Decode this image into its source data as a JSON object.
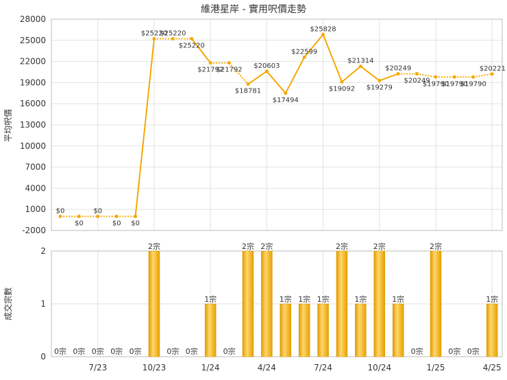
{
  "chart_data": [
    {
      "type": "line",
      "title": "維港星岸 - 實用呎價走勢",
      "ylabel": "平均呎價",
      "ylim": [
        -2000,
        28000
      ],
      "y_ticks": [
        "-2000",
        "1000",
        "4000",
        "7000",
        "10000",
        "13000",
        "16000",
        "19000",
        "22000",
        "25000",
        "28000"
      ],
      "grid": true,
      "x": [
        "5/23",
        "6/23",
        "7/23",
        "8/23",
        "9/23",
        "10/23",
        "11/23",
        "12/23",
        "1/24",
        "2/24",
        "3/24",
        "4/24",
        "5/24",
        "6/24",
        "7/24",
        "8/24",
        "9/24",
        "10/24",
        "11/24",
        "12/24",
        "1/25",
        "2/25",
        "3/25",
        "4/25"
      ],
      "values": [
        0,
        0,
        0,
        0,
        0,
        25220,
        25220,
        25220,
        21792,
        21792,
        18781,
        20603,
        17494,
        22599,
        25828,
        19092,
        21314,
        19279,
        20249,
        20249,
        19790,
        19790,
        19790,
        20221
      ],
      "actual": [
        false,
        false,
        false,
        false,
        true,
        true,
        false,
        true,
        true,
        false,
        true,
        true,
        true,
        true,
        true,
        true,
        true,
        true,
        true,
        false,
        true,
        false,
        false,
        true
      ],
      "labels": [
        "$0",
        "$0",
        "$0",
        "$0",
        "$0",
        "$25220",
        "$25220",
        "$25220",
        "$21792",
        "$21792",
        "$18781",
        "$20603",
        "$17494",
        "$22599",
        "$25828",
        "$19092",
        "$21314",
        "$19279",
        "$20249",
        "$20249",
        "$19790",
        "$19790",
        "$19790",
        "$20221"
      ],
      "color": "#f5a800"
    },
    {
      "type": "bar",
      "ylabel": "成交宗數",
      "ylim": [
        0,
        2
      ],
      "y_ticks": [
        "0",
        "1",
        "2"
      ],
      "categories": [
        "5/23",
        "6/23",
        "7/23",
        "8/23",
        "9/23",
        "10/23",
        "11/23",
        "12/23",
        "1/24",
        "2/24",
        "3/24",
        "4/24",
        "5/24",
        "6/24",
        "7/24",
        "8/24",
        "9/24",
        "10/24",
        "11/24",
        "12/24",
        "1/25",
        "2/25",
        "3/25",
        "4/25"
      ],
      "values": [
        0,
        0,
        0,
        0,
        0,
        2,
        0,
        0,
        1,
        0,
        2,
        2,
        1,
        1,
        1,
        2,
        1,
        2,
        1,
        0,
        2,
        0,
        0,
        1
      ],
      "labels": [
        "0宗",
        "0宗",
        "0宗",
        "0宗",
        "0宗",
        "2宗",
        "0宗",
        "0宗",
        "1宗",
        "0宗",
        "2宗",
        "2宗",
        "1宗",
        "1宗",
        "1宗",
        "2宗",
        "1宗",
        "2宗",
        "1宗",
        "0宗",
        "2宗",
        "0宗",
        "0宗",
        "1宗"
      ],
      "x_tick_labels": [
        "7/23",
        "10/23",
        "1/24",
        "4/24",
        "7/24",
        "10/24",
        "1/25",
        "4/25"
      ],
      "color": "#f2b400"
    }
  ]
}
